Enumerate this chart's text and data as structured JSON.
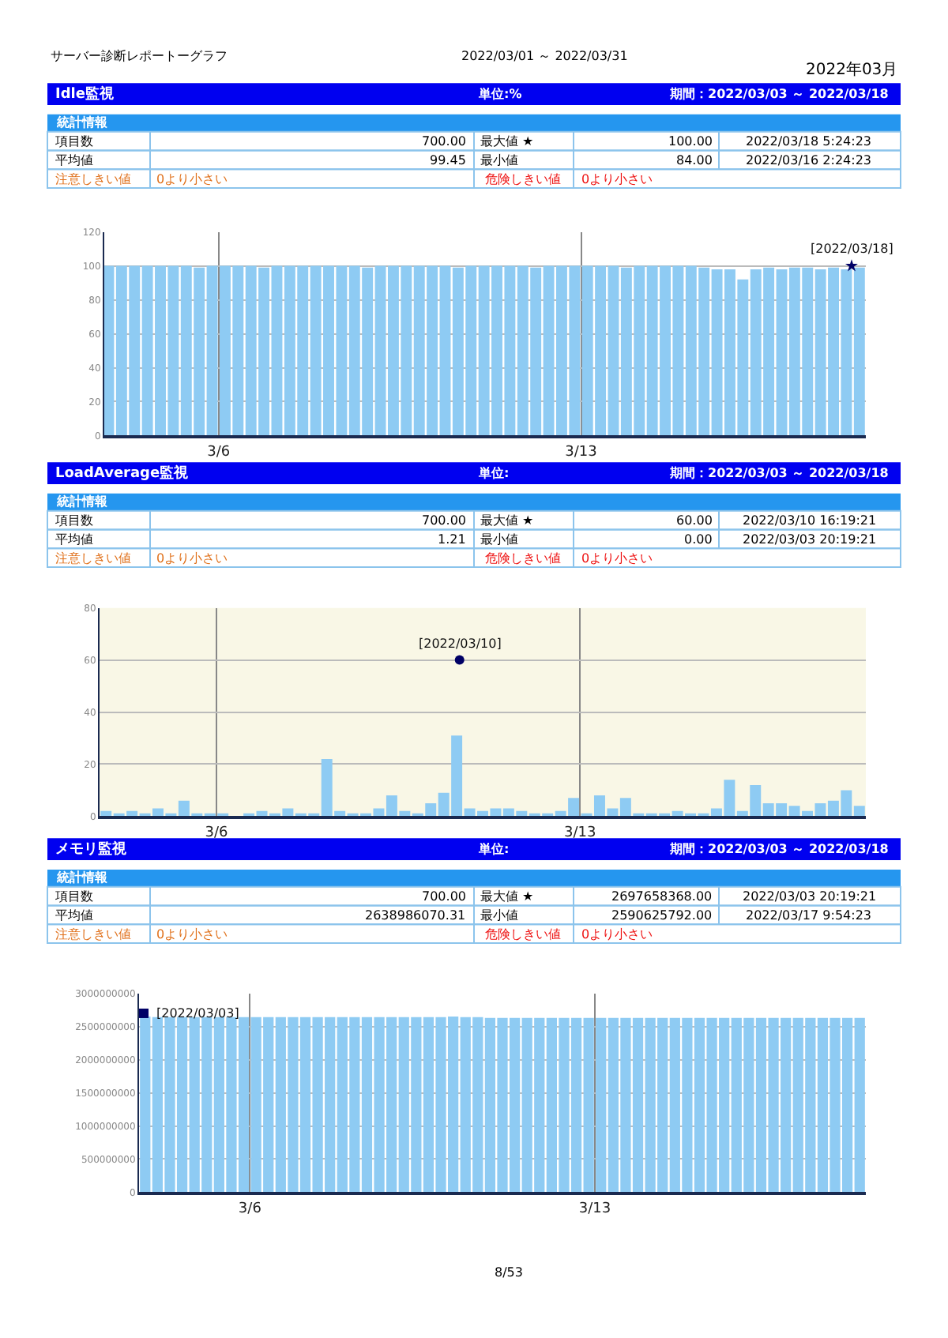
{
  "chart_data": [
    {
      "type": "other",
      "annotations": [
        "サーバー診断レポートーグラフ",
        "2022/03/01 ～ 2022/03/31",
        "2022年03月"
      ]
    },
    {
      "type": "other",
      "title": "Idle監視",
      "annotations": [
        "単位:%",
        "期間：2022/03/03 ～ 2022/03/18",
        "統計情報",
        "項目数",
        "700.00",
        "最大値 ★",
        "100.00",
        "2022/03/18 5:24:23",
        "平均値",
        "99.45",
        "最小値",
        "84.00",
        "2022/03/16 2:24:23",
        "注意しきい値",
        "0より小さい",
        "危険しきい値",
        "0より小さい"
      ]
    },
    {
      "type": "bar",
      "x": [
        "2022-03-03T21:00",
        "2022-03-04T03:00",
        "2022-03-04T09:00",
        "2022-03-04T15:00",
        "2022-03-04T21:00",
        "2022-03-05T03:00",
        "2022-03-05T09:00",
        "2022-03-05T15:00",
        "2022-03-05T21:00",
        "2022-03-06T03:00",
        "2022-03-06T09:00",
        "2022-03-06T15:00",
        "2022-03-06T21:00",
        "2022-03-07T03:00",
        "2022-03-07T09:00",
        "2022-03-07T15:00",
        "2022-03-07T21:00",
        "2022-03-08T03:00",
        "2022-03-08T09:00",
        "2022-03-08T15:00",
        "2022-03-08T21:00",
        "2022-03-09T03:00",
        "2022-03-09T09:00",
        "2022-03-09T15:00",
        "2022-03-09T21:00",
        "2022-03-10T03:00",
        "2022-03-10T09:00",
        "2022-03-10T15:00",
        "2022-03-10T21:00",
        "2022-03-11T03:00",
        "2022-03-11T09:00",
        "2022-03-11T15:00",
        "2022-03-11T21:00",
        "2022-03-12T03:00",
        "2022-03-12T09:00",
        "2022-03-12T15:00",
        "2022-03-12T21:00",
        "2022-03-13T03:00",
        "2022-03-13T09:00",
        "2022-03-13T15:00",
        "2022-03-13T21:00",
        "2022-03-14T03:00",
        "2022-03-14T09:00",
        "2022-03-14T15:00",
        "2022-03-14T21:00",
        "2022-03-15T03:00",
        "2022-03-15T09:00",
        "2022-03-15T15:00",
        "2022-03-15T21:00",
        "2022-03-16T03:00",
        "2022-03-16T09:00",
        "2022-03-16T15:00",
        "2022-03-16T21:00",
        "2022-03-17T03:00",
        "2022-03-17T09:00",
        "2022-03-17T15:00",
        "2022-03-17T21:00",
        "2022-03-18T03:00",
        "2022-03-18T09:00"
      ],
      "series": [
        {
          "color": "#8ecbf3",
          "values": [
            100,
            100,
            100,
            100,
            100,
            100,
            100,
            99,
            100,
            100,
            100,
            100,
            99,
            100,
            100,
            100,
            100,
            100,
            100,
            100,
            99,
            100,
            100,
            100,
            100,
            100,
            100,
            99,
            100,
            100,
            100,
            100,
            100,
            99,
            100,
            100,
            100,
            100,
            100,
            100,
            99,
            100,
            100,
            100,
            100,
            100,
            99,
            98,
            98,
            92,
            98,
            99,
            98,
            99,
            99,
            98,
            99,
            98,
            99
          ]
        },
        {
          "type": "scatter",
          "marker": "star",
          "color": "#000066",
          "x": [
            "2022-03-18T05:24"
          ],
          "values": [
            100
          ]
        }
      ],
      "annotations": [
        {
          "text": "[2022/03/18]",
          "x": "2022-03-18T05:24",
          "y": 100
        }
      ],
      "xlim": [
        "2022-03-03T19:00",
        "2022-03-18T12:00"
      ],
      "xticks": [
        {
          "value": "2022-03-06",
          "label": "3/6"
        },
        {
          "value": "2022-03-13",
          "label": "3/13"
        }
      ],
      "ylim": [
        0,
        120
      ],
      "yticks": [
        0,
        20,
        40,
        60,
        80,
        100,
        120
      ],
      "grid": true
    },
    {
      "type": "other",
      "title": "LoadAverage監視",
      "annotations": [
        "単位:",
        "期間：2022/03/03 ～ 2022/03/18",
        "統計情報",
        "項目数",
        "700.00",
        "最大値 ★",
        "60.00",
        "2022/03/10 16:19:21",
        "平均値",
        "1.21",
        "最小値",
        "0.00",
        "2022/03/03 20:19:21",
        "注意しきい値",
        "0より小さい",
        "危険しきい値",
        "0より小さい"
      ]
    },
    {
      "type": "bar",
      "x": [
        "2022-03-03T21:00",
        "2022-03-04T03:00",
        "2022-03-04T09:00",
        "2022-03-04T15:00",
        "2022-03-04T21:00",
        "2022-03-05T03:00",
        "2022-03-05T09:00",
        "2022-03-05T15:00",
        "2022-03-05T21:00",
        "2022-03-06T03:00",
        "2022-03-06T09:00",
        "2022-03-06T15:00",
        "2022-03-06T21:00",
        "2022-03-07T03:00",
        "2022-03-07T09:00",
        "2022-03-07T15:00",
        "2022-03-07T21:00",
        "2022-03-08T03:00",
        "2022-03-08T09:00",
        "2022-03-08T15:00",
        "2022-03-08T21:00",
        "2022-03-09T03:00",
        "2022-03-09T09:00",
        "2022-03-09T15:00",
        "2022-03-09T21:00",
        "2022-03-10T03:00",
        "2022-03-10T09:00",
        "2022-03-10T15:00",
        "2022-03-10T21:00",
        "2022-03-11T03:00",
        "2022-03-11T09:00",
        "2022-03-11T15:00",
        "2022-03-11T21:00",
        "2022-03-12T03:00",
        "2022-03-12T09:00",
        "2022-03-12T15:00",
        "2022-03-12T21:00",
        "2022-03-13T03:00",
        "2022-03-13T09:00",
        "2022-03-13T15:00",
        "2022-03-13T21:00",
        "2022-03-14T03:00",
        "2022-03-14T09:00",
        "2022-03-14T15:00",
        "2022-03-14T21:00",
        "2022-03-15T03:00",
        "2022-03-15T09:00",
        "2022-03-15T15:00",
        "2022-03-15T21:00",
        "2022-03-16T03:00",
        "2022-03-16T09:00",
        "2022-03-16T15:00",
        "2022-03-16T21:00",
        "2022-03-17T03:00",
        "2022-03-17T09:00",
        "2022-03-17T15:00",
        "2022-03-17T21:00",
        "2022-03-18T03:00",
        "2022-03-18T09:00"
      ],
      "series": [
        {
          "color": "#8ecbf3",
          "values": [
            2,
            1,
            2,
            1,
            3,
            1,
            6,
            1,
            1,
            1,
            0,
            1,
            2,
            1,
            3,
            1,
            1,
            22,
            2,
            1,
            1,
            3,
            8,
            2,
            1,
            5,
            9,
            31,
            3,
            2,
            3,
            3,
            2,
            1,
            1,
            2,
            7,
            1,
            8,
            3,
            7,
            1,
            1,
            1,
            2,
            1,
            1,
            3,
            14,
            2,
            12,
            5,
            5,
            4,
            2,
            5,
            6,
            10,
            4
          ]
        },
        {
          "type": "scatter",
          "marker": "circle",
          "color": "#000066",
          "x": [
            "2022-03-10T16:19"
          ],
          "values": [
            60
          ]
        }
      ],
      "annotations": [
        {
          "text": "[2022/03/10]",
          "x": "2022-03-10T16:19",
          "y": 60
        }
      ],
      "xlim": [
        "2022-03-03T18:00",
        "2022-03-18T12:00"
      ],
      "xticks": [
        {
          "value": "2022-03-06",
          "label": "3/6"
        },
        {
          "value": "2022-03-13",
          "label": "3/13"
        }
      ],
      "ylim": [
        0,
        80
      ],
      "yticks": [
        0,
        20,
        40,
        60,
        80
      ],
      "grid": true
    },
    {
      "type": "other",
      "title": "メモリ監視",
      "annotations": [
        "単位:",
        "期間：2022/03/03 ～ 2022/03/18",
        "統計情報",
        "項目数",
        "700.00",
        "最大値 ★",
        "2697658368.00",
        "2022/03/03 20:19:21",
        "平均値",
        "2638986070.31",
        "最小値",
        "2590625792.00",
        "2022/03/17 9:54:23",
        "注意しきい値",
        "0より小さい",
        "危険しきい値",
        "0より小さい"
      ]
    },
    {
      "type": "bar",
      "x": [
        "2022-03-03T21:00",
        "2022-03-04T03:00",
        "2022-03-04T09:00",
        "2022-03-04T15:00",
        "2022-03-04T21:00",
        "2022-03-05T03:00",
        "2022-03-05T09:00",
        "2022-03-05T15:00",
        "2022-03-05T21:00",
        "2022-03-06T03:00",
        "2022-03-06T09:00",
        "2022-03-06T15:00",
        "2022-03-06T21:00",
        "2022-03-07T03:00",
        "2022-03-07T09:00",
        "2022-03-07T15:00",
        "2022-03-07T21:00",
        "2022-03-08T03:00",
        "2022-03-08T09:00",
        "2022-03-08T15:00",
        "2022-03-08T21:00",
        "2022-03-09T03:00",
        "2022-03-09T09:00",
        "2022-03-09T15:00",
        "2022-03-09T21:00",
        "2022-03-10T03:00",
        "2022-03-10T09:00",
        "2022-03-10T15:00",
        "2022-03-10T21:00",
        "2022-03-11T03:00",
        "2022-03-11T09:00",
        "2022-03-11T15:00",
        "2022-03-11T21:00",
        "2022-03-12T03:00",
        "2022-03-12T09:00",
        "2022-03-12T15:00",
        "2022-03-12T21:00",
        "2022-03-13T03:00",
        "2022-03-13T09:00",
        "2022-03-13T15:00",
        "2022-03-13T21:00",
        "2022-03-14T03:00",
        "2022-03-14T09:00",
        "2022-03-14T15:00",
        "2022-03-14T21:00",
        "2022-03-15T03:00",
        "2022-03-15T09:00",
        "2022-03-15T15:00",
        "2022-03-15T21:00",
        "2022-03-16T03:00",
        "2022-03-16T09:00",
        "2022-03-16T15:00",
        "2022-03-16T21:00",
        "2022-03-17T03:00",
        "2022-03-17T09:00",
        "2022-03-17T15:00",
        "2022-03-17T21:00",
        "2022-03-18T03:00",
        "2022-03-18T09:00"
      ],
      "series": [
        {
          "color": "#8ecbf3",
          "values": [
            2650000000,
            2640000000,
            2640000000,
            2640000000,
            2640000000,
            2640000000,
            2640000000,
            2640000000,
            2640000000,
            2640000000,
            2640000000,
            2640000000,
            2640000000,
            2640000000,
            2640000000,
            2640000000,
            2640000000,
            2640000000,
            2640000000,
            2640000000,
            2640000000,
            2640000000,
            2640000000,
            2640000000,
            2640000000,
            2650000000,
            2640000000,
            2640000000,
            2630000000,
            2630000000,
            2630000000,
            2630000000,
            2630000000,
            2630000000,
            2630000000,
            2630000000,
            2630000000,
            2630000000,
            2630000000,
            2630000000,
            2630000000,
            2630000000,
            2630000000,
            2630000000,
            2630000000,
            2630000000,
            2630000000,
            2630000000,
            2630000000,
            2630000000,
            2630000000,
            2630000000,
            2630000000,
            2630000000,
            2630000000,
            2630000000,
            2630000000,
            2630000000,
            2630000000
          ]
        },
        {
          "type": "scatter",
          "marker": "square",
          "color": "#000066",
          "x": [
            "2022-03-03T20:19"
          ],
          "values": [
            2697658368
          ]
        }
      ],
      "annotations": [
        {
          "text": "[2022/03/03]",
          "x": "2022-03-03T20:19",
          "y": 2697658368
        }
      ],
      "xlim": [
        "2022-03-03T18:00",
        "2022-03-18T12:00"
      ],
      "xticks": [
        {
          "value": "2022-03-06",
          "label": "3/6"
        },
        {
          "value": "2022-03-13",
          "label": "3/13"
        }
      ],
      "ylim": [
        0,
        3000000000
      ],
      "yticks": [
        0,
        500000000,
        1000000000,
        1500000000,
        2000000000,
        2500000000,
        3000000000
      ],
      "grid": true
    },
    {
      "type": "other",
      "annotations": [
        "8/53"
      ]
    }
  ]
}
